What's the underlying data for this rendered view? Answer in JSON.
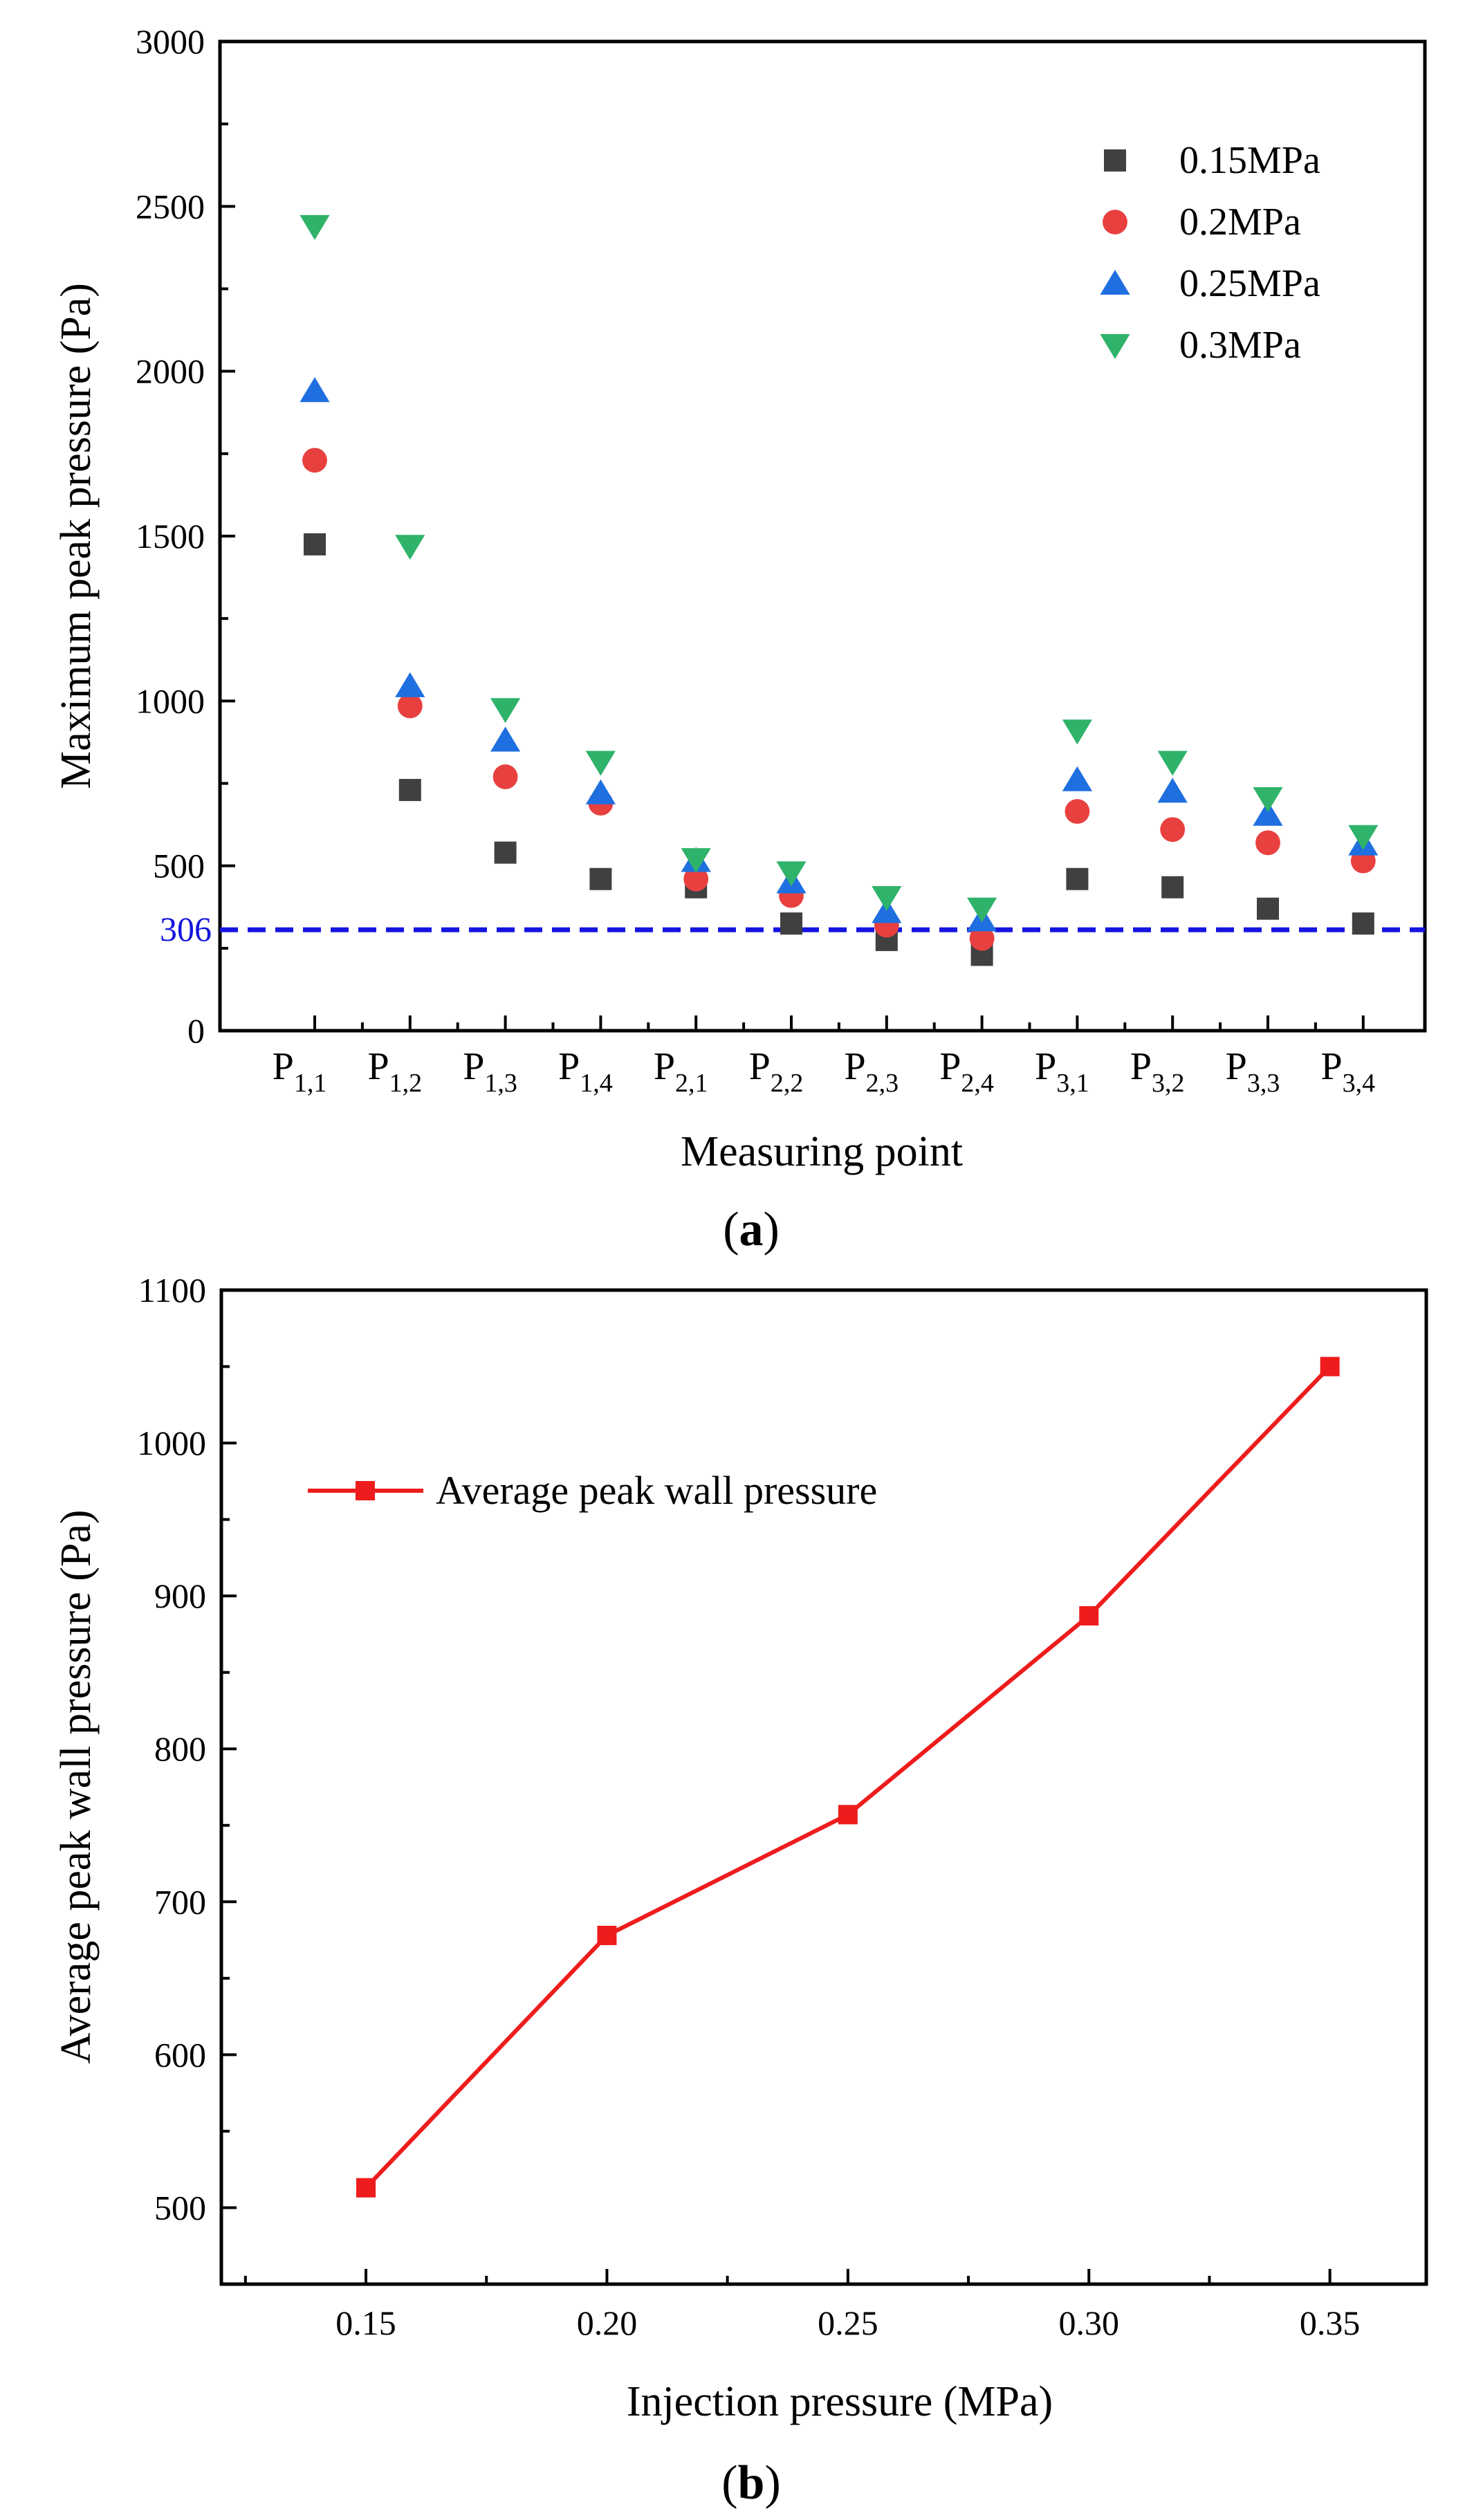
{
  "chart_data": [
    {
      "type": "scatter",
      "panel_label": "a",
      "xlabel": "Measuring point",
      "ylabel": "Maximum peak pressure (Pa)",
      "ylim": [
        0,
        3000
      ],
      "yticks": [
        "0",
        "500",
        "1000",
        "1500",
        "2000",
        "2500",
        "3000"
      ],
      "categories": [
        {
          "base": "P",
          "sub": "1,1"
        },
        {
          "base": "P",
          "sub": "1,2"
        },
        {
          "base": "P",
          "sub": "1,3"
        },
        {
          "base": "P",
          "sub": "1,4"
        },
        {
          "base": "P",
          "sub": "2,1"
        },
        {
          "base": "P",
          "sub": "2,2"
        },
        {
          "base": "P",
          "sub": "2,3"
        },
        {
          "base": "P",
          "sub": "2,4"
        },
        {
          "base": "P",
          "sub": "3,1"
        },
        {
          "base": "P",
          "sub": "3,2"
        },
        {
          "base": "P",
          "sub": "3,3"
        },
        {
          "base": "P",
          "sub": "3,4"
        }
      ],
      "series": [
        {
          "name": "0.15MPa",
          "marker": "square",
          "color": "#404040",
          "values": [
            1475,
            730,
            540,
            460,
            435,
            325,
            275,
            230,
            460,
            435,
            370,
            325
          ]
        },
        {
          "name": "0.2MPa",
          "marker": "circle",
          "color": "#e8403f",
          "values": [
            1730,
            985,
            770,
            690,
            460,
            410,
            320,
            280,
            665,
            610,
            570,
            515
          ]
        },
        {
          "name": "0.25MPa",
          "marker": "triangle-up",
          "color": "#1f6fe0",
          "values": [
            1940,
            1045,
            880,
            720,
            515,
            450,
            360,
            335,
            760,
            725,
            655,
            565
          ]
        },
        {
          "name": "0.3MPa",
          "marker": "triangle-down",
          "color": "#2fb36a",
          "values": [
            2440,
            1470,
            975,
            815,
            520,
            480,
            405,
            370,
            910,
            815,
            705,
            590
          ]
        }
      ],
      "reference_line": {
        "value": 306,
        "label": "306",
        "color": "#1414e0",
        "style": "dashed"
      },
      "legend_position": "top-right",
      "grid": false
    },
    {
      "type": "line",
      "panel_label": "b",
      "xlabel": "Injection pressure (MPa)",
      "ylabel": "Average peak wall pressure (Pa)",
      "xlim": [
        0.12,
        0.37
      ],
      "ylim": [
        450,
        1100
      ],
      "xticks": [
        "0.15",
        "0.20",
        "0.25",
        "0.30",
        "0.35"
      ],
      "yticks": [
        "500",
        "600",
        "700",
        "800",
        "900",
        "1000",
        "1100"
      ],
      "series": [
        {
          "name": "Average peak wall pressure",
          "marker": "square",
          "color": "#ee1c1c",
          "x": [
            0.15,
            0.2,
            0.25,
            0.3,
            0.35
          ],
          "y": [
            513,
            678,
            757,
            887,
            1050
          ]
        }
      ],
      "legend_position": "top-left",
      "grid": false
    }
  ]
}
